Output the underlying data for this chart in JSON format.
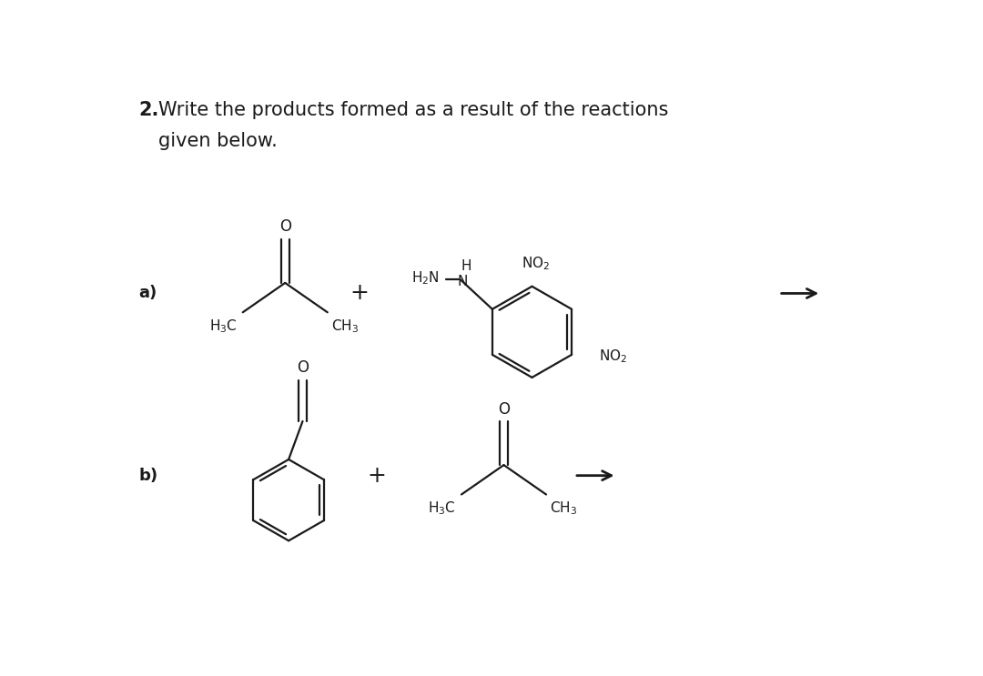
{
  "background_color": "#ffffff",
  "line_color": "#1a1a1a",
  "text_color": "#1a1a1a",
  "figsize": [
    10.8,
    7.43
  ],
  "dpi": 100,
  "title_number": "2.",
  "title_line1": "Write the products formed as a result of the reactions",
  "title_line2": "given below."
}
